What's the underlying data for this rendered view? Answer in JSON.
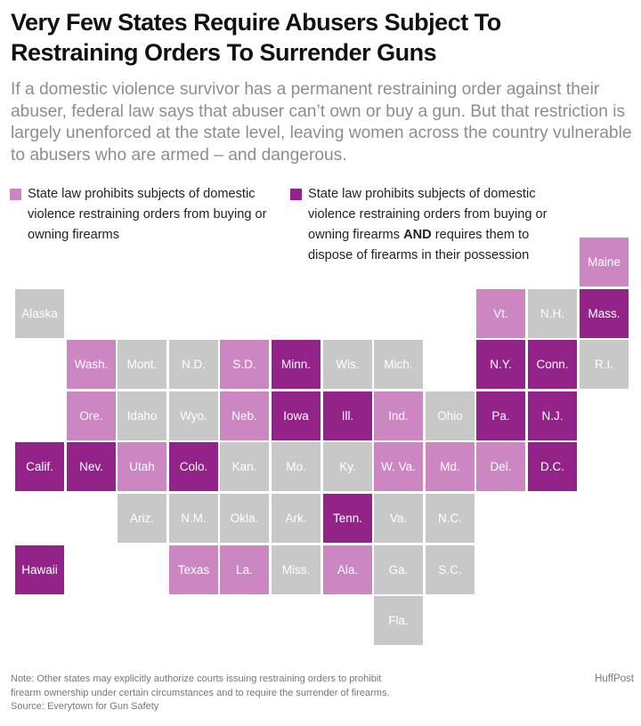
{
  "header": {
    "title": "Very Few States Require Abusers Subject To Restraining Orders To Surrender Guns",
    "subtitle": "If a domestic violence survivor has a permanent restraining order against their abuser, federal law says that abuser can’t own or buy a gun. But that restriction is largely unenforced at the state level, leaving women across the country vulnerable to abusers who are armed – and dangerous."
  },
  "colors": {
    "none": "#c9c8c9",
    "buy": "#cc86c1",
    "dispose": "#942389"
  },
  "legend": {
    "item1": "State law prohibits subjects of domestic violence restraining orders from buying or owning firearms",
    "item2_before": "State law prohibits subjects of domestic violence restraining orders from buying or owning firearms",
    "item2_bold": "AND",
    "item2_after": "requires them to dispose of firearms in their possession"
  },
  "states": [
    {
      "label": "Maine",
      "cat": "buy",
      "row": 0,
      "col": 11
    },
    {
      "label": "Alaska",
      "cat": "none",
      "row": 1,
      "col": 0
    },
    {
      "label": "Vt.",
      "cat": "buy",
      "row": 1,
      "col": 9
    },
    {
      "label": "N.H.",
      "cat": "none",
      "row": 1,
      "col": 10
    },
    {
      "label": "Mass.",
      "cat": "dispose",
      "row": 1,
      "col": 11
    },
    {
      "label": "Wash.",
      "cat": "buy",
      "row": 2,
      "col": 1
    },
    {
      "label": "Mont.",
      "cat": "none",
      "row": 2,
      "col": 2
    },
    {
      "label": "N.D.",
      "cat": "none",
      "row": 2,
      "col": 3
    },
    {
      "label": "S.D.",
      "cat": "buy",
      "row": 2,
      "col": 4
    },
    {
      "label": "Minn.",
      "cat": "dispose",
      "row": 2,
      "col": 5
    },
    {
      "label": "Wis.",
      "cat": "none",
      "row": 2,
      "col": 6
    },
    {
      "label": "Mich.",
      "cat": "none",
      "row": 2,
      "col": 7
    },
    {
      "label": "N.Y.",
      "cat": "dispose",
      "row": 2,
      "col": 9
    },
    {
      "label": "Conn.",
      "cat": "dispose",
      "row": 2,
      "col": 10
    },
    {
      "label": "R.I.",
      "cat": "none",
      "row": 2,
      "col": 11
    },
    {
      "label": "Ore.",
      "cat": "buy",
      "row": 3,
      "col": 1
    },
    {
      "label": "Idaho",
      "cat": "none",
      "row": 3,
      "col": 2
    },
    {
      "label": "Wyo.",
      "cat": "none",
      "row": 3,
      "col": 3
    },
    {
      "label": "Neb.",
      "cat": "buy",
      "row": 3,
      "col": 4
    },
    {
      "label": "Iowa",
      "cat": "dispose",
      "row": 3,
      "col": 5
    },
    {
      "label": "Ill.",
      "cat": "dispose",
      "row": 3,
      "col": 6
    },
    {
      "label": "Ind.",
      "cat": "buy",
      "row": 3,
      "col": 7
    },
    {
      "label": "Ohio",
      "cat": "none",
      "row": 3,
      "col": 8
    },
    {
      "label": "Pa.",
      "cat": "dispose",
      "row": 3,
      "col": 9
    },
    {
      "label": "N.J.",
      "cat": "dispose",
      "row": 3,
      "col": 10
    },
    {
      "label": "Calif.",
      "cat": "dispose",
      "row": 4,
      "col": 0
    },
    {
      "label": "Nev.",
      "cat": "dispose",
      "row": 4,
      "col": 1
    },
    {
      "label": "Utah",
      "cat": "buy",
      "row": 4,
      "col": 2
    },
    {
      "label": "Colo.",
      "cat": "dispose",
      "row": 4,
      "col": 3
    },
    {
      "label": "Kan.",
      "cat": "none",
      "row": 4,
      "col": 4
    },
    {
      "label": "Mo.",
      "cat": "none",
      "row": 4,
      "col": 5
    },
    {
      "label": "Ky.",
      "cat": "none",
      "row": 4,
      "col": 6
    },
    {
      "label": "W. Va.",
      "cat": "buy",
      "row": 4,
      "col": 7
    },
    {
      "label": "Md.",
      "cat": "buy",
      "row": 4,
      "col": 8
    },
    {
      "label": "Del.",
      "cat": "buy",
      "row": 4,
      "col": 9
    },
    {
      "label": "D.C.",
      "cat": "dispose",
      "row": 4,
      "col": 10
    },
    {
      "label": "Ariz.",
      "cat": "none",
      "row": 5,
      "col": 2
    },
    {
      "label": "N.M.",
      "cat": "none",
      "row": 5,
      "col": 3
    },
    {
      "label": "Okla.",
      "cat": "none",
      "row": 5,
      "col": 4
    },
    {
      "label": "Ark.",
      "cat": "none",
      "row": 5,
      "col": 5
    },
    {
      "label": "Tenn.",
      "cat": "dispose",
      "row": 5,
      "col": 6
    },
    {
      "label": "Va.",
      "cat": "none",
      "row": 5,
      "col": 7
    },
    {
      "label": "N.C.",
      "cat": "none",
      "row": 5,
      "col": 8
    },
    {
      "label": "Hawaii",
      "cat": "dispose",
      "row": 6,
      "col": 0
    },
    {
      "label": "Texas",
      "cat": "buy",
      "row": 6,
      "col": 3
    },
    {
      "label": "La.",
      "cat": "buy",
      "row": 6,
      "col": 4
    },
    {
      "label": "Miss.",
      "cat": "none",
      "row": 6,
      "col": 5
    },
    {
      "label": "Ala.",
      "cat": "buy",
      "row": 6,
      "col": 6
    },
    {
      "label": "Ga.",
      "cat": "none",
      "row": 6,
      "col": 7
    },
    {
      "label": "S.C.",
      "cat": "none",
      "row": 6,
      "col": 8
    },
    {
      "label": "Fla.",
      "cat": "none",
      "row": 7,
      "col": 7
    }
  ],
  "footer": {
    "note_line1": "Note: Other states may explicitly authorize courts issuing restraining orders to prohibit",
    "note_line2": "firearm ownership under certain circumstances and to require the surrender of firearms.",
    "source": "Source: Everytown for Gun Safety",
    "brand": "HuffPost"
  }
}
